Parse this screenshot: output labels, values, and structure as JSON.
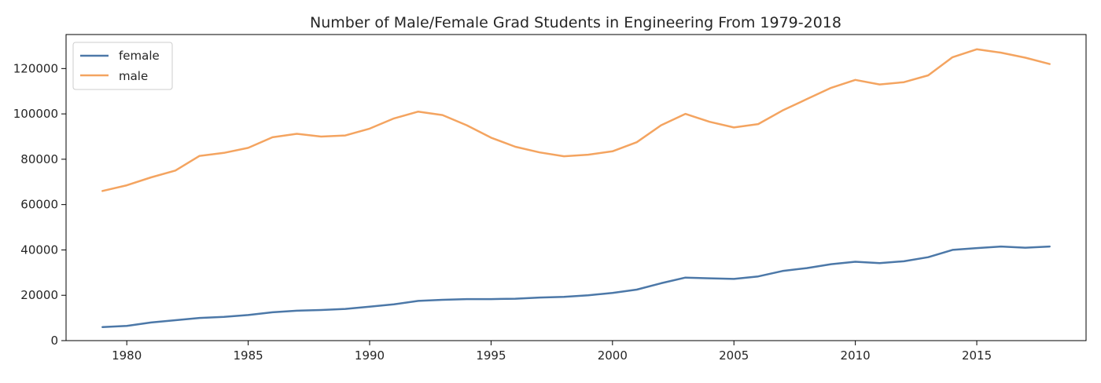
{
  "chart_data": {
    "type": "line",
    "title": "Number of Male/Female Grad Students in Engineering From 1979-2018",
    "xlabel": "",
    "ylabel": "",
    "xlim": [
      1977.5,
      2019.5
    ],
    "ylim": [
      0,
      135000
    ],
    "xticks": [
      1980,
      1985,
      1990,
      1995,
      2000,
      2005,
      2010,
      2015
    ],
    "yticks": [
      0,
      20000,
      40000,
      60000,
      80000,
      100000,
      120000
    ],
    "grid": false,
    "legend_position": "top-left",
    "x": [
      1979,
      1980,
      1981,
      1982,
      1983,
      1984,
      1985,
      1986,
      1987,
      1988,
      1989,
      1990,
      1991,
      1992,
      1993,
      1994,
      1995,
      1996,
      1997,
      1998,
      1999,
      2000,
      2001,
      2002,
      2003,
      2004,
      2005,
      2006,
      2007,
      2008,
      2009,
      2010,
      2011,
      2012,
      2013,
      2014,
      2015,
      2016,
      2017,
      2018
    ],
    "series": [
      {
        "name": "female",
        "color": "#4c78a8",
        "values": [
          6000,
          6500,
          8000,
          9000,
          10000,
          10500,
          11300,
          12500,
          13200,
          13500,
          14000,
          15000,
          16000,
          17500,
          18000,
          18300,
          18300,
          18500,
          19000,
          19300,
          20000,
          21000,
          22500,
          25300,
          27800,
          27500,
          27200,
          28300,
          30700,
          32000,
          33700,
          34800,
          34200,
          35000,
          36800,
          40000,
          40800,
          41500,
          41000,
          41500
        ]
      },
      {
        "name": "male",
        "color": "#f4a460",
        "values": [
          66000,
          68500,
          72000,
          75000,
          81500,
          82800,
          85000,
          89700,
          91200,
          90000,
          90500,
          93500,
          98000,
          101000,
          99500,
          95000,
          89500,
          85500,
          83000,
          81300,
          82000,
          83500,
          87500,
          95000,
          100000,
          96500,
          94000,
          95500,
          101500,
          106500,
          111500,
          115000,
          113000,
          114000,
          117000,
          125000,
          128500,
          127000,
          124800,
          122000
        ]
      }
    ]
  }
}
